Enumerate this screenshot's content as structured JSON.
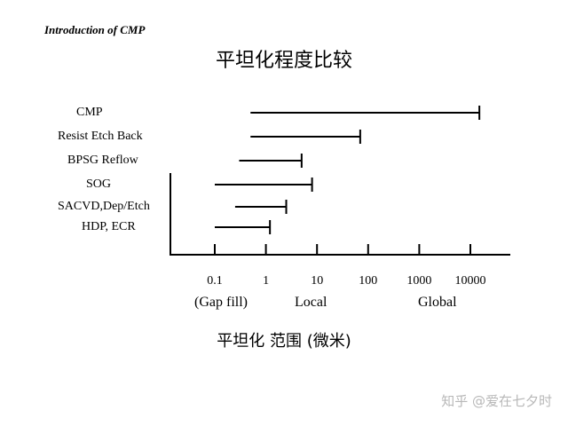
{
  "header": "Introduction of CMP",
  "chart_data": {
    "type": "range-bar",
    "title": "平坦化程度比较",
    "xlabel": "平坦化 范围 (微米)",
    "x_scale": "log",
    "x_ticks": [
      {
        "value": 0.1,
        "label": "0.1"
      },
      {
        "value": 1,
        "label": "1"
      },
      {
        "value": 10,
        "label": "10"
      },
      {
        "value": 100,
        "label": "100"
      },
      {
        "value": 1000,
        "label": "1000"
      },
      {
        "value": 10000,
        "label": "10000"
      }
    ],
    "regions": [
      {
        "label": "(Gap fill)",
        "at": 0.1
      },
      {
        "label": "Local",
        "at": 10
      },
      {
        "label": "Global",
        "at": 1000
      }
    ],
    "series": [
      {
        "name": "CMP",
        "start": 0.5,
        "end": 15000
      },
      {
        "name": "Resist Etch Back",
        "start": 0.5,
        "end": 70
      },
      {
        "name": "BPSG Reflow",
        "start": 0.3,
        "end": 5
      },
      {
        "name": "SOG",
        "start": 0.1,
        "end": 8
      },
      {
        "name": "SACVD,Dep/Etch",
        "start": 0.25,
        "end": 2.5
      },
      {
        "name": "HDP, ECR",
        "start": 0.1,
        "end": 1.2
      }
    ]
  },
  "watermark": "知乎 @爱在七夕时"
}
